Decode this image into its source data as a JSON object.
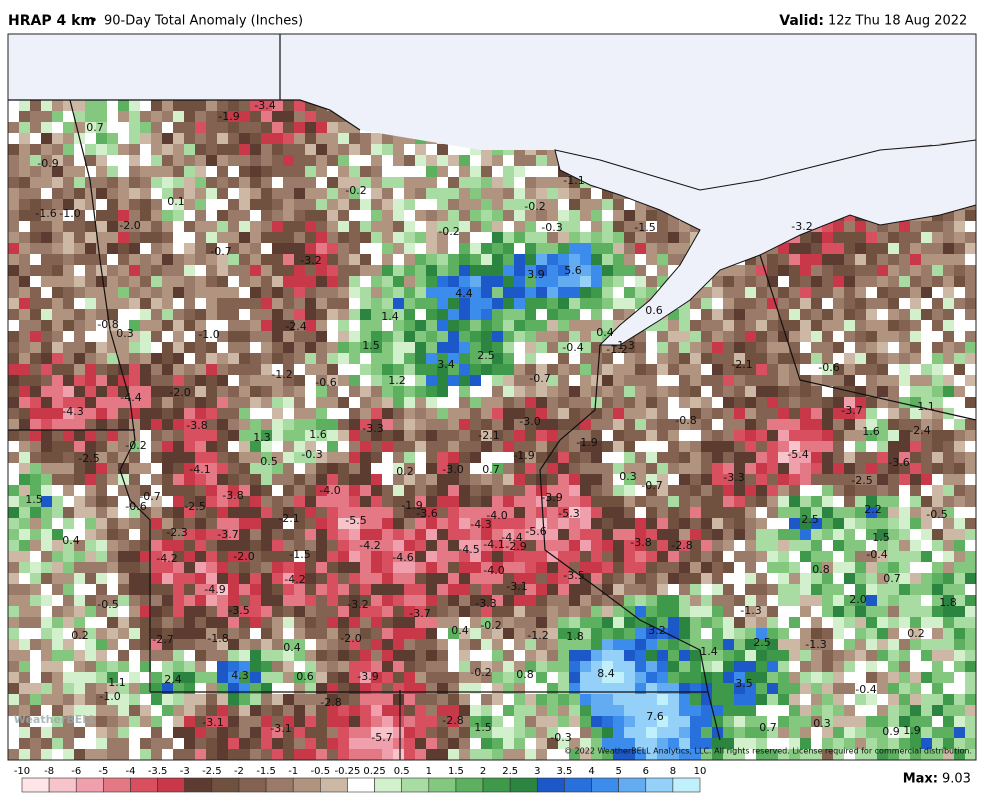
{
  "header": {
    "title": "HRAP 4 km",
    "separator": "•",
    "subtitle": "90-Day Total Anomaly (Inches)",
    "valid_label": "Valid:",
    "valid_time": "12z Thu 18 Aug 2022"
  },
  "map": {
    "logo": "WeatherBELL",
    "copyright": "© 2022 WeatherBELL Analytics, LLC. All rights reserved. License required for commercial distribution.",
    "labels": [
      "0.7",
      "-1.9",
      "-3.4",
      "-0.9",
      "-1.6",
      "-1.0",
      "0.1",
      "-2.0",
      "-0.2",
      "-0.2",
      "-1.1",
      "-0.2",
      "-0.3",
      "-1.5",
      "-3.2",
      "-0.7",
      "-3.2",
      "3.9",
      "5.6",
      "4.4",
      "0.6",
      "-0.8",
      "0.3",
      "-1.0",
      "-2.4",
      "1.4",
      "0.4",
      "-1.3",
      "-1.2",
      "1.5",
      "-0.4",
      "2.5",
      "3.4",
      "-2.1",
      "-0.6",
      "-1.2",
      "-0.6",
      "1.2",
      "-0.7",
      "-2.0",
      "-4.4",
      "-4.3",
      "-3.7",
      "1.1",
      "-3.8",
      "1.3",
      "1.6",
      "-3.3",
      "-2.1",
      "-3.0",
      "-1.9",
      "-0.8",
      "1.6",
      "-2.4",
      "-0.2",
      "-2.5",
      "0.5",
      "-0.3",
      "0.2",
      "-3.0",
      "0.7",
      "-1.9",
      "-5.4",
      "-3.6",
      "-4.1",
      "0.3",
      "-0.7",
      "-3.3",
      "-2.5",
      "1.5",
      "-0.7",
      "-0.6",
      "-2.5",
      "-3.8",
      "-4.0",
      "-1.9",
      "-3.6",
      "-4.0",
      "-3.9",
      "-5.3",
      "-4.3",
      "-2.1",
      "-5.5",
      "-4.4",
      "-5.6",
      "2.5",
      "2.2",
      "-0.5",
      "0.4",
      "-2.3",
      "-3.7",
      "-4.1",
      "-2.9",
      "-4.2",
      "-4.5",
      "-3.8",
      "-2.8",
      "1.5",
      "-0.4",
      "-4.2",
      "-2.0",
      "-1.5",
      "-4.6",
      "-4.0",
      "0.8",
      "0.7",
      "-3.5",
      "-4.9",
      "-4.2",
      "-3.1",
      "-0.5",
      "-3.5",
      "-3.2",
      "-3.7",
      "-3.3",
      "2.0",
      "1.8",
      "-1.3",
      "0.2",
      "-2.7",
      "-1.8",
      "-2.0",
      "0.4",
      "-0.2",
      "-1.2",
      "1.8",
      "3.2",
      "0.2",
      "0.4",
      "2.5",
      "-1.3",
      "1.4",
      "-0.2",
      "0.8",
      "8.4",
      "4.3",
      "0.6",
      "-3.9",
      "1.1",
      "2.4",
      "3.5",
      "-0.4",
      "-1.0",
      "-2.8",
      "7.6",
      "-3.1",
      "-3.1",
      "-2.8",
      "1.5",
      "0.7",
      "0.3",
      "-5.7",
      "-0.3",
      "0.9",
      "1.9"
    ]
  },
  "colorbar": {
    "ticks": [
      -10,
      -8,
      -6,
      -5,
      -4,
      -3.5,
      -3,
      -2.5,
      -2,
      -1.5,
      -1,
      -0.5,
      -0.25,
      0.25,
      0.5,
      1,
      1.5,
      2,
      2.5,
      3,
      3.5,
      4,
      5,
      6,
      8,
      10
    ],
    "colors": [
      "#ffe4e8",
      "#f8c4cc",
      "#f0a0ac",
      "#e47884",
      "#d85060",
      "#c83848",
      "#5c3c30",
      "#70503f",
      "#846252",
      "#9a7a68",
      "#b09480",
      "#cdb8a6",
      "#ffffff",
      "#d2f0cc",
      "#a8dca2",
      "#84c880",
      "#5cb060",
      "#3e9a4a",
      "#2b8540",
      "#1c58c8",
      "#2870dc",
      "#3c8cec",
      "#64acf2",
      "#94d0f8",
      "#c0f0fc"
    ],
    "max_label": "Max:",
    "max_value": "9.03"
  }
}
